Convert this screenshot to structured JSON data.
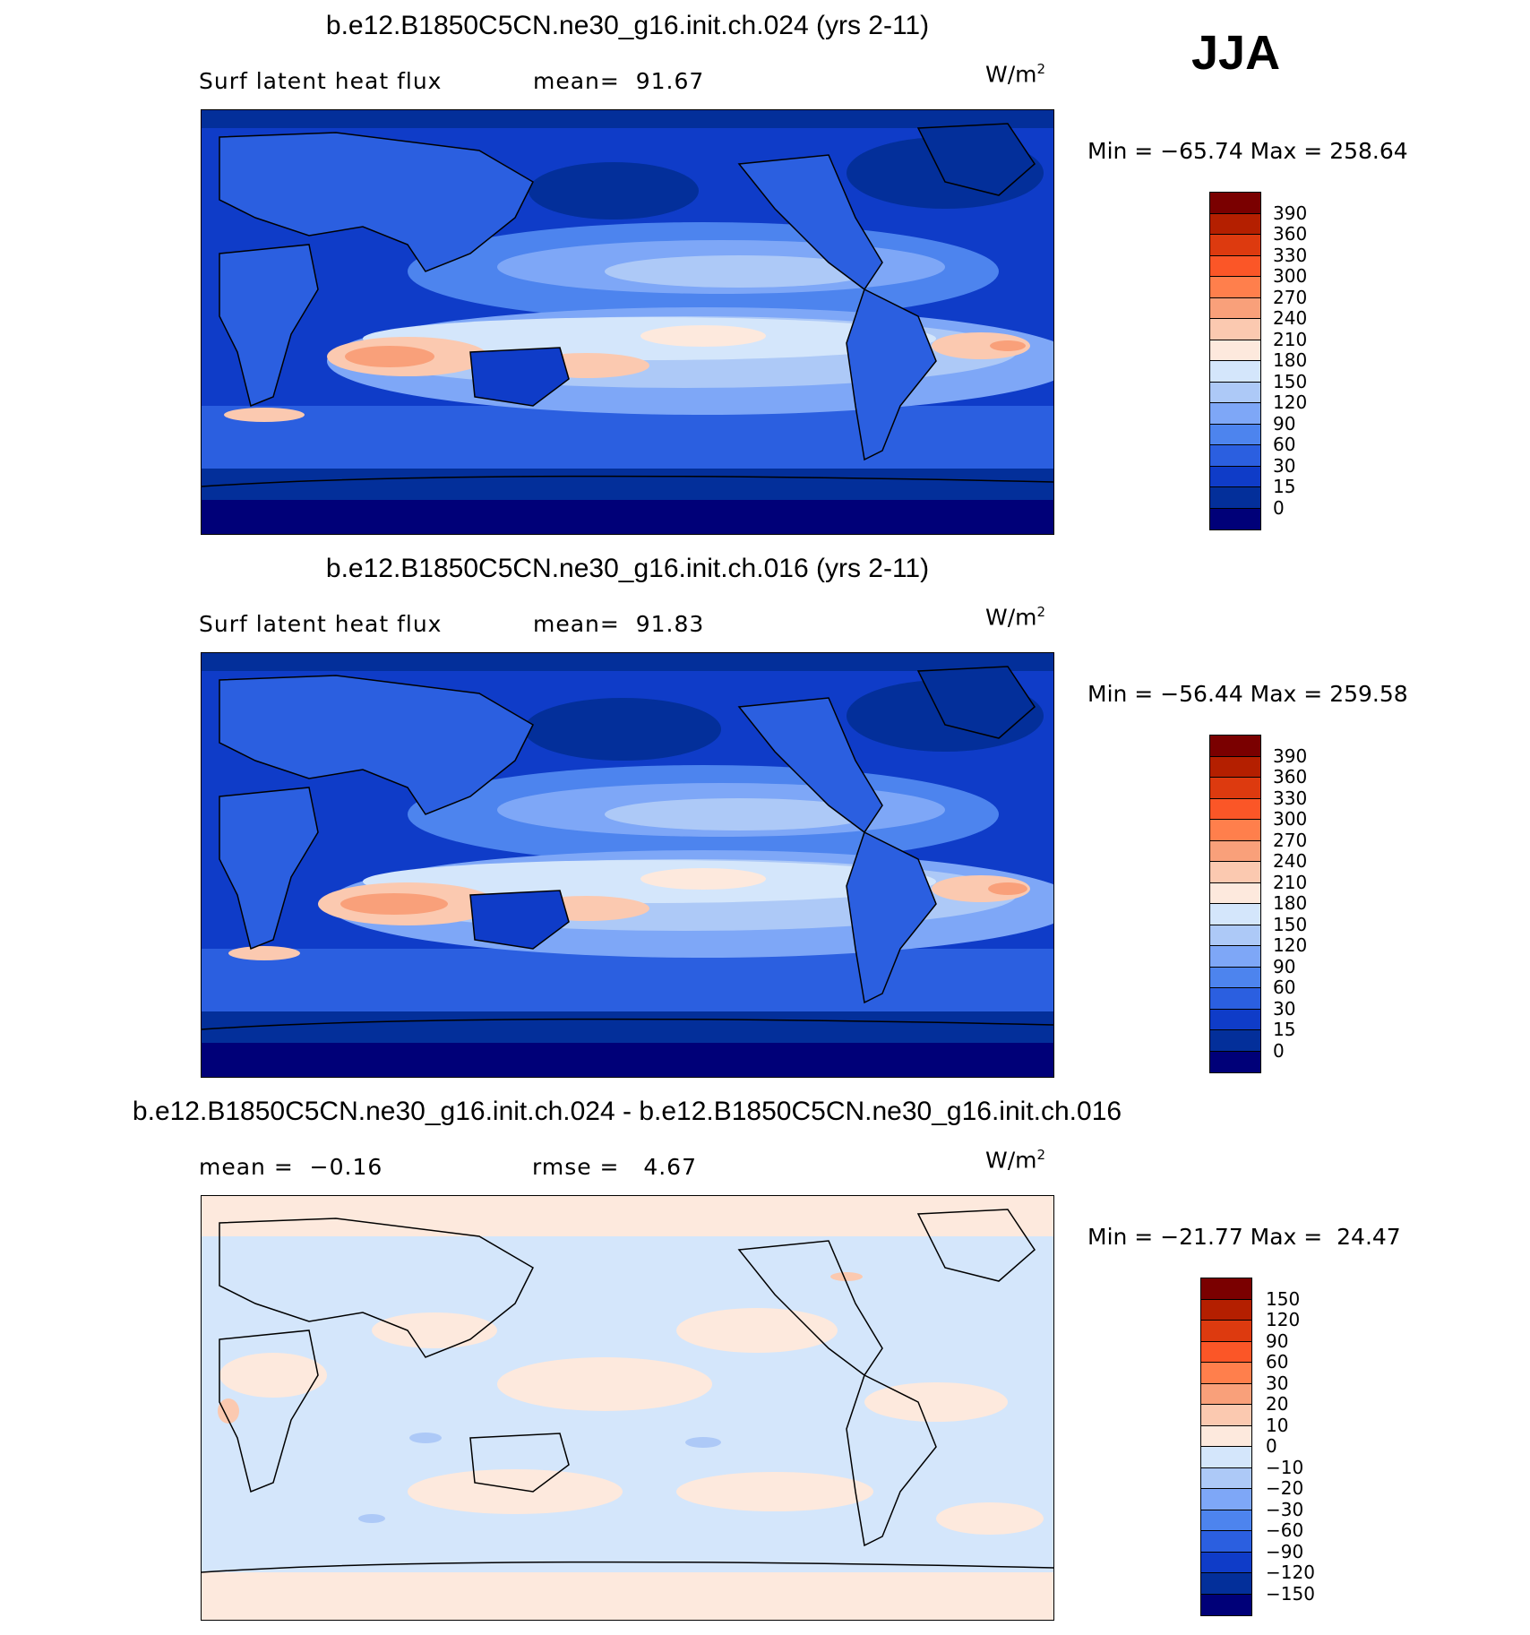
{
  "season": "JJA",
  "units_base": "W/m",
  "units_exp": "2",
  "panels": [
    {
      "title": "b.e12.B1850C5CN.ne30_g16.init.ch.024 (yrs 2-11)",
      "stat_left": "Surf latent heat flux",
      "stat_right": "mean=  91.67",
      "minmax": "Min = −65.74 Max = 258.64",
      "colorbar": {
        "labels": [
          "390",
          "360",
          "330",
          "300",
          "270",
          "240",
          "210",
          "180",
          "150",
          "120",
          "90",
          "60",
          "30",
          "15",
          "0"
        ],
        "colors": [
          "#7a0000",
          "#b41f00",
          "#dd3a0f",
          "#fb5627",
          "#ff7f4c",
          "#f9a07a",
          "#fbc9b0",
          "#fde9dd",
          "#d4e6fb",
          "#adc9f7",
          "#7ea7f7",
          "#4d84ee",
          "#2b5fe0",
          "#0f3cc8",
          "#032f9a",
          "#000078"
        ]
      }
    },
    {
      "title": "b.e12.B1850C5CN.ne30_g16.init.ch.016 (yrs 2-11)",
      "stat_left": "Surf latent heat flux",
      "stat_right": "mean=  91.83",
      "minmax": "Min = −56.44 Max = 259.58",
      "colorbar": {
        "labels": [
          "390",
          "360",
          "330",
          "300",
          "270",
          "240",
          "210",
          "180",
          "150",
          "120",
          "90",
          "60",
          "30",
          "15",
          "0"
        ],
        "colors": [
          "#7a0000",
          "#b41f00",
          "#dd3a0f",
          "#fb5627",
          "#ff7f4c",
          "#f9a07a",
          "#fbc9b0",
          "#fde9dd",
          "#d4e6fb",
          "#adc9f7",
          "#7ea7f7",
          "#4d84ee",
          "#2b5fe0",
          "#0f3cc8",
          "#032f9a",
          "#000078"
        ]
      }
    },
    {
      "title": "b.e12.B1850C5CN.ne30_g16.init.ch.024 - b.e12.B1850C5CN.ne30_g16.init.ch.016",
      "stat_left": "mean =  −0.16",
      "stat_right": "rmse =   4.67",
      "minmax": "Min = −21.77 Max =  24.47",
      "colorbar": {
        "labels": [
          "150",
          "120",
          "90",
          "60",
          "30",
          "20",
          "10",
          "0",
          "−10",
          "−20",
          "−30",
          "−60",
          "−90",
          "−120",
          "−150"
        ],
        "colors": [
          "#7a0000",
          "#b41f00",
          "#dd3a0f",
          "#fb5627",
          "#ff7f4c",
          "#f9a07a",
          "#fbc9b0",
          "#fde9dd",
          "#d4e6fb",
          "#adc9f7",
          "#7ea7f7",
          "#4d84ee",
          "#2b5fe0",
          "#0f3cc8",
          "#032f9a",
          "#000078"
        ]
      }
    }
  ]
}
